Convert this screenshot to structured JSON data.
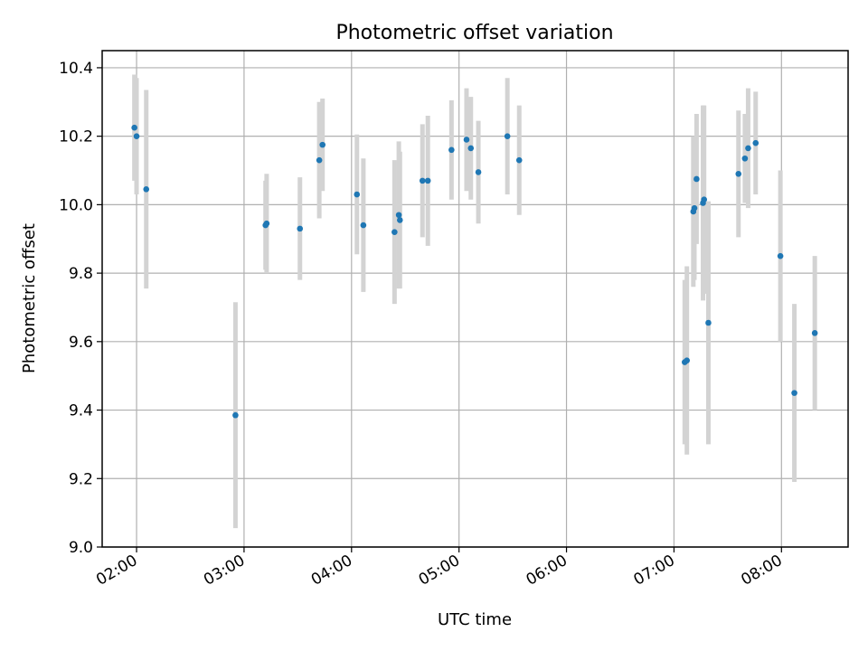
{
  "chart_data": {
    "type": "scatter",
    "title": "Photometric offset variation",
    "xlabel": "UTC time",
    "ylabel": "Photometric offset",
    "x_unit": "hours UTC",
    "xlim": [
      1.68,
      8.62
    ],
    "ylim": [
      9.0,
      10.45
    ],
    "yticks": [
      9.0,
      9.2,
      9.4,
      9.6,
      9.8,
      10.0,
      10.2,
      10.4
    ],
    "ytick_labels": [
      "9.0",
      "9.2",
      "9.4",
      "9.6",
      "9.8",
      "10.0",
      "10.2",
      "10.4"
    ],
    "xticks": [
      2,
      3,
      4,
      5,
      6,
      7,
      8
    ],
    "xtick_labels": [
      "02:00",
      "03:00",
      "04:00",
      "05:00",
      "06:00",
      "07:00",
      "08:00"
    ],
    "grid": true,
    "colors": {
      "point": "#1f77b4",
      "errorbar": "#d3d3d3"
    },
    "points": [
      {
        "x": 1.98,
        "y": 10.225,
        "yerr": 0.155
      },
      {
        "x": 2.0,
        "y": 10.2,
        "yerr": 0.17
      },
      {
        "x": 2.09,
        "y": 10.045,
        "yerr": 0.29
      },
      {
        "x": 2.92,
        "y": 9.385,
        "yerr": 0.33
      },
      {
        "x": 3.2,
        "y": 9.94,
        "yerr": 0.13
      },
      {
        "x": 3.21,
        "y": 9.945,
        "yerr": 0.145
      },
      {
        "x": 3.52,
        "y": 9.93,
        "yerr": 0.15
      },
      {
        "x": 3.7,
        "y": 10.13,
        "yerr": 0.17
      },
      {
        "x": 3.73,
        "y": 10.175,
        "yerr": 0.135
      },
      {
        "x": 4.05,
        "y": 10.03,
        "yerr": 0.175
      },
      {
        "x": 4.11,
        "y": 9.94,
        "yerr": 0.195
      },
      {
        "x": 4.4,
        "y": 9.92,
        "yerr": 0.21
      },
      {
        "x": 4.44,
        "y": 9.97,
        "yerr": 0.215
      },
      {
        "x": 4.45,
        "y": 9.955,
        "yerr": 0.2
      },
      {
        "x": 4.66,
        "y": 10.07,
        "yerr": 0.165
      },
      {
        "x": 4.71,
        "y": 10.07,
        "yerr": 0.19
      },
      {
        "x": 4.93,
        "y": 10.16,
        "yerr": 0.145
      },
      {
        "x": 5.07,
        "y": 10.19,
        "yerr": 0.15
      },
      {
        "x": 5.11,
        "y": 10.165,
        "yerr": 0.15
      },
      {
        "x": 5.18,
        "y": 10.095,
        "yerr": 0.15
      },
      {
        "x": 5.45,
        "y": 10.2,
        "yerr": 0.17
      },
      {
        "x": 5.56,
        "y": 10.13,
        "yerr": 0.16
      },
      {
        "x": 7.1,
        "y": 9.54,
        "yerr": 0.24
      },
      {
        "x": 7.12,
        "y": 9.545,
        "yerr": 0.275
      },
      {
        "x": 7.18,
        "y": 9.98,
        "yerr": 0.22
      },
      {
        "x": 7.19,
        "y": 9.99,
        "yerr": 0.21
      },
      {
        "x": 7.21,
        "y": 10.075,
        "yerr": 0.19
      },
      {
        "x": 7.27,
        "y": 10.005,
        "yerr": 0.285
      },
      {
        "x": 7.28,
        "y": 10.015,
        "yerr": 0.275
      },
      {
        "x": 7.32,
        "y": 9.655,
        "yerr": 0.355
      },
      {
        "x": 7.6,
        "y": 10.09,
        "yerr": 0.185
      },
      {
        "x": 7.66,
        "y": 10.135,
        "yerr": 0.13
      },
      {
        "x": 7.69,
        "y": 10.165,
        "yerr": 0.175
      },
      {
        "x": 7.76,
        "y": 10.18,
        "yerr": 0.15
      },
      {
        "x": 7.99,
        "y": 9.85,
        "yerr": 0.25
      },
      {
        "x": 8.12,
        "y": 9.45,
        "yerr": 0.26
      },
      {
        "x": 8.31,
        "y": 9.625,
        "yerr": 0.225
      }
    ]
  }
}
